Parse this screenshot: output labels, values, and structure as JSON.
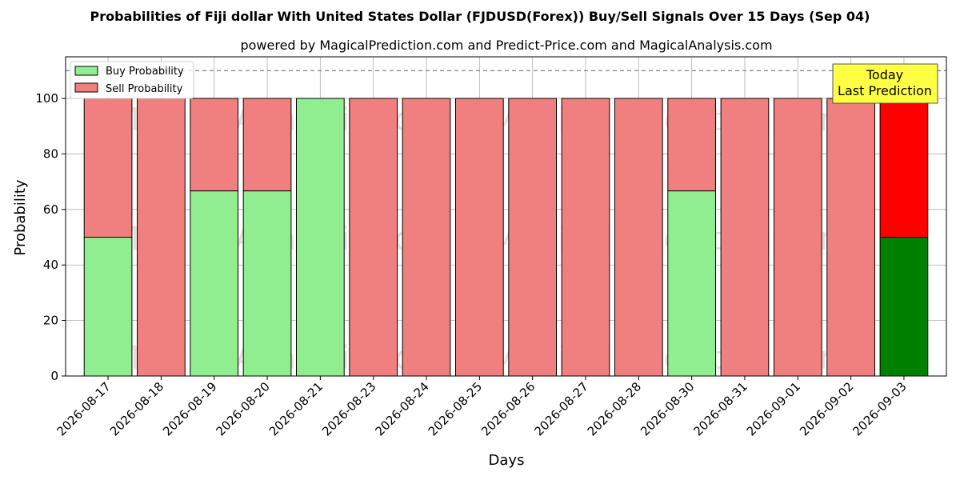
{
  "chart_data": {
    "type": "bar",
    "stacked": true,
    "title": "Probabilities of Fiji dollar With United States Dollar (FJDUSD(Forex)) Buy/Sell Signals Over 15 Days (Sep 04)",
    "subtitle": "powered by MagicalPrediction.com and Predict-Price.com and MagicalAnalysis.com",
    "xlabel": "Days",
    "ylabel": "Probability",
    "ylim": [
      0,
      115
    ],
    "yticks": [
      0,
      20,
      40,
      60,
      80,
      100
    ],
    "reference_line": 110,
    "grid": true,
    "legend_position": "top-left",
    "categories": [
      "2026-08-17",
      "2026-08-18",
      "2026-08-19",
      "2026-08-20",
      "2026-08-21",
      "2026-08-23",
      "2026-08-24",
      "2026-08-25",
      "2026-08-26",
      "2026-08-27",
      "2026-08-28",
      "2026-08-30",
      "2026-08-31",
      "2026-09-01",
      "2026-09-02",
      "2026-09-03"
    ],
    "series": [
      {
        "name": "Buy Probability",
        "color": "#90ee90",
        "values": [
          50,
          0,
          66.7,
          66.7,
          100,
          0,
          0,
          0,
          0,
          0,
          0,
          66.7,
          0,
          0,
          0,
          50
        ]
      },
      {
        "name": "Sell Probability",
        "color": "#f08080",
        "values": [
          50,
          100,
          33.3,
          33.3,
          0,
          100,
          100,
          100,
          100,
          100,
          100,
          33.3,
          100,
          100,
          100,
          50
        ]
      }
    ],
    "highlight": {
      "index": 15,
      "buy_color": "#008000",
      "sell_color": "#ff0000"
    },
    "annotation": "Today\nLast Prediction",
    "watermarks": [
      "MagicalAnalysis.com",
      "MagicalPrediction.com"
    ]
  }
}
